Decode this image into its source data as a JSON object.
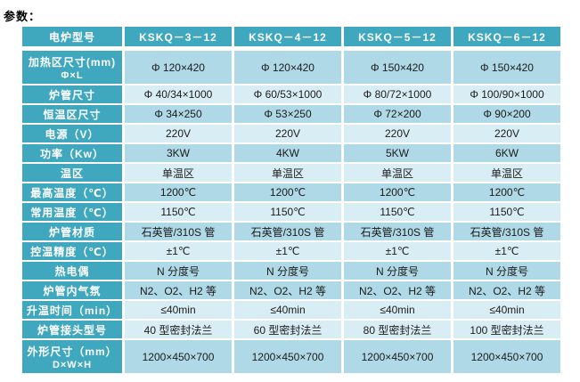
{
  "title": "参数：",
  "colors": {
    "header_bg": "#3fa7be",
    "row_medium": "#afd9e6",
    "row_light": "#d8edf4",
    "label_text": "#ffffff",
    "cell_text": "#1b1b1b"
  },
  "table": {
    "corner_label": "电炉型号",
    "models": [
      "KSKQ－3－12",
      "KSKQ－4－12",
      "KSKQ－5－12",
      "KSKQ－6－12"
    ],
    "rows": [
      {
        "label": "加热区尺寸(mm)",
        "sublabel": "Φ×L",
        "shade": "medium",
        "values": [
          "Φ 120×420",
          "Φ 120×420",
          "Φ 150×420",
          "Φ 150×420"
        ]
      },
      {
        "label": "炉管尺寸",
        "shade": "light",
        "values": [
          "Φ 40/34×1000",
          "Φ 60/53×1000",
          "Φ 80/72×1000",
          "Φ 100/90×1000"
        ]
      },
      {
        "label": "恒温区尺寸",
        "shade": "medium",
        "values": [
          "Φ 34×250",
          "Φ 53×250",
          "Φ 72×200",
          "Φ 90×200"
        ]
      },
      {
        "label": "电源（V）",
        "shade": "light",
        "values": [
          "220V",
          "220V",
          "220V",
          "220V"
        ]
      },
      {
        "label": "功率（Kw）",
        "shade": "medium",
        "values": [
          "3KW",
          "4KW",
          "5KW",
          "6KW"
        ]
      },
      {
        "label": "温区",
        "shade": "light",
        "values": [
          "单温区",
          "单温区",
          "单温区",
          "单温区"
        ]
      },
      {
        "label": "最高温度（℃）",
        "shade": "medium",
        "values": [
          "1200℃",
          "1200℃",
          "1200℃",
          "1200℃"
        ]
      },
      {
        "label": "常用温度（℃）",
        "shade": "light",
        "values": [
          "1150℃",
          "1150℃",
          "1150℃",
          "1150℃"
        ]
      },
      {
        "label": "炉管材质",
        "shade": "medium",
        "values": [
          "石英管/310S 管",
          "石英管/310S 管",
          "石英管/310S 管",
          "石英管/310S 管"
        ]
      },
      {
        "label": "控温精度（℃）",
        "shade": "light",
        "values": [
          "±1℃",
          "±1℃",
          "±1℃",
          "±1℃"
        ]
      },
      {
        "label": "热电偶",
        "shade": "medium",
        "values": [
          "N 分度号",
          "N 分度号",
          "N 分度号",
          "N 分度号"
        ]
      },
      {
        "label": "炉管内气氛",
        "shade": "medium",
        "values": [
          "N2、O2、H2 等",
          "N2、O2、H2 等",
          "N2、O2、H2 等",
          "N2、O2、H2 等"
        ]
      },
      {
        "label": "升温时间（min）",
        "shade": "light",
        "values": [
          "≤40min",
          "≤40min",
          "≤40min",
          "≤40min"
        ]
      },
      {
        "label": "炉管接头型号",
        "shade": "light",
        "values": [
          "40 型密封法兰",
          "60 型密封法兰",
          "80 型密封法兰",
          "100 型密封法兰"
        ]
      },
      {
        "label": "外形尺寸（mm）",
        "sublabel": "D×W×H",
        "shade": "medium",
        "values": [
          "1200×450×700",
          "1200×450×700",
          "1200×450×700",
          "1200×450×700"
        ]
      }
    ]
  }
}
